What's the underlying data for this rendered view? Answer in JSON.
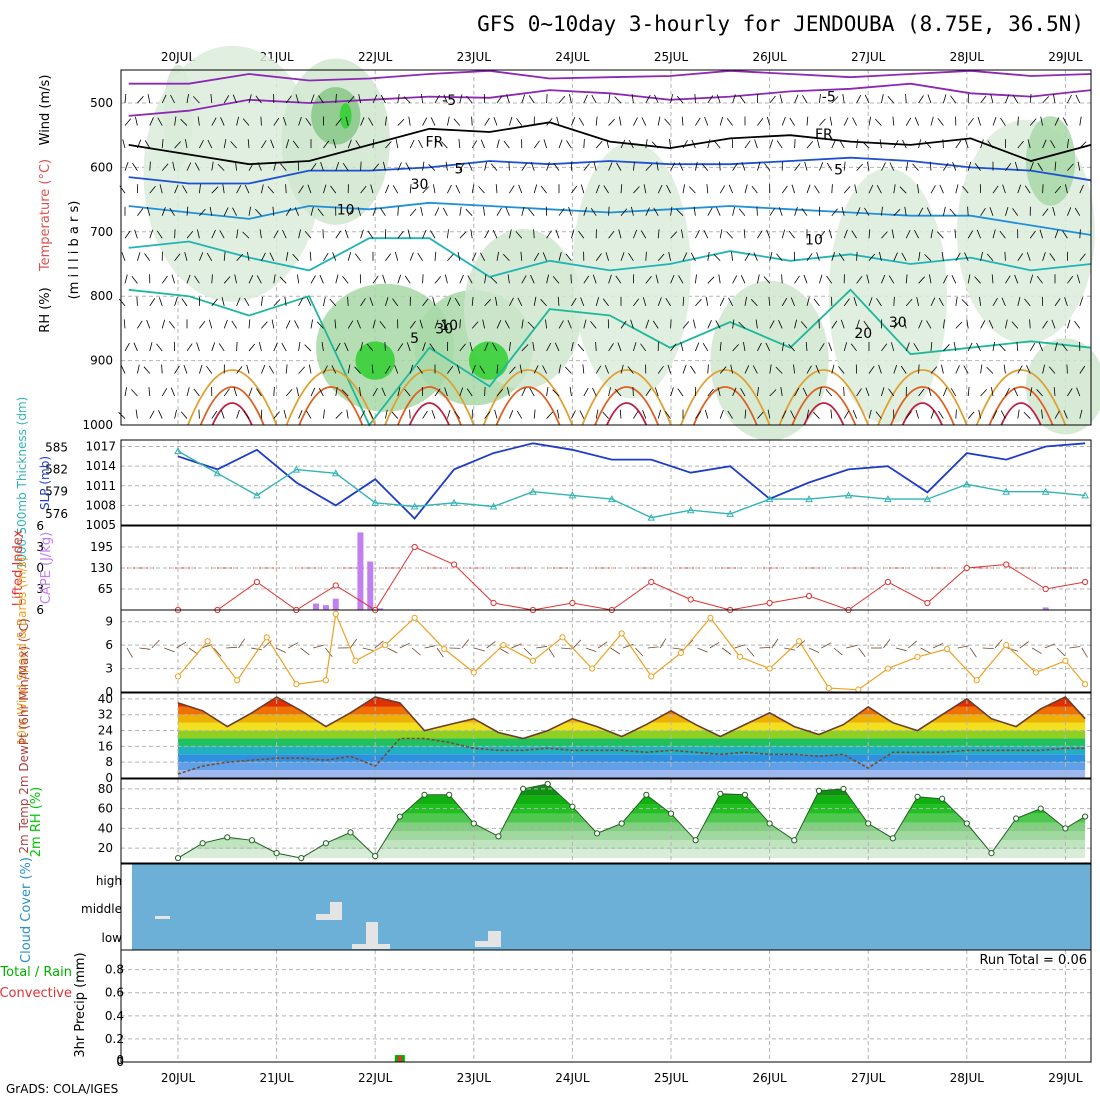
{
  "title": "GFS 0~10day 3-hourly for JENDOUBA (8.75E, 36.5N)",
  "credit": "GrADS: COLA/IGES",
  "date_labels": [
    "20JUL",
    "21JUL",
    "22JUL",
    "23JUL",
    "24JUL",
    "25JUL",
    "26JUL",
    "27JUL",
    "28JUL",
    "29JUL"
  ],
  "colors": {
    "grid": "#b4b4b4",
    "slp": "#1e3cc8",
    "thick": "#32b4b4",
    "li": "#e03232",
    "cape": "#c080f0",
    "wind": "#f0a020",
    "temp_line": "#6e3c28",
    "rh": "#00c800",
    "cloud_bg": "#6cb0d8",
    "rain": "#00b000",
    "conv": "#e03232"
  },
  "chart_data": [
    {
      "type": "contour",
      "panel": "upper-air",
      "ylabel_parts": [
        "RH (%)",
        "Temperature (°C)",
        "Wind (m/s)",
        "(m i l l i b a r s)"
      ],
      "y_ticks": [
        500,
        600,
        700,
        800,
        900,
        1000
      ],
      "temperature_labels": [
        "-5",
        "-5",
        "FR",
        "FR",
        "5",
        "5",
        "10",
        "10",
        "20",
        "30",
        "30",
        "30",
        "5",
        "10"
      ]
    },
    {
      "type": "line",
      "panel": "thickness-slp",
      "ylabel_left": "1000-500mb Thickness (dm)",
      "ylabel_right": "SLP (mb)",
      "thickness_ticks": [
        576,
        579,
        582,
        585
      ],
      "slp_ticks": [
        1005,
        1008,
        1011,
        1014,
        1017
      ],
      "x": [
        0,
        0.4,
        0.8,
        1.2,
        1.6,
        2.0,
        2.4,
        2.8,
        3.2,
        3.6,
        4.0,
        4.4,
        4.8,
        5.2,
        5.6,
        6.0,
        6.4,
        6.8,
        7.2,
        7.6,
        8.0,
        8.4,
        8.8,
        9.2
      ],
      "series": [
        {
          "name": "SLP (mb)",
          "values": [
            1015.5,
            1013.5,
            1016.5,
            1011.5,
            1008,
            1012,
            1006,
            1013.5,
            1016,
            1017.5,
            1016.5,
            1015,
            1015,
            1013,
            1014,
            1009,
            1011.5,
            1013.5,
            1014,
            1010,
            1016,
            1015,
            1017,
            1017.5
          ]
        },
        {
          "name": "1000-500mb Thickness (dm)",
          "values": [
            584.5,
            581.5,
            578.5,
            582,
            581.5,
            577.5,
            577,
            577.5,
            577,
            579,
            578.5,
            578,
            575.5,
            576.5,
            576,
            578,
            578,
            578.5,
            578,
            578,
            580,
            579,
            579,
            578.5
          ]
        }
      ]
    },
    {
      "type": "bar",
      "panel": "cape-li",
      "ylabel_left": "Lifted Index",
      "ylabel_right": "CAPE (J/kg)",
      "li_ticks": [
        -6,
        -3,
        0,
        3,
        6
      ],
      "cape_ticks": [
        65,
        130,
        195
      ],
      "li_values": [
        6,
        6,
        2,
        6,
        2.5,
        6,
        -3,
        -0.5,
        5,
        6,
        5,
        6,
        2,
        4.5,
        6,
        5,
        4,
        6,
        2,
        5,
        0,
        -0.5,
        3,
        2
      ],
      "cape_bars": [
        {
          "x": 1.4,
          "v": 20
        },
        {
          "x": 1.5,
          "v": 15
        },
        {
          "x": 1.6,
          "v": 35
        },
        {
          "x": 1.85,
          "v": 240
        },
        {
          "x": 1.95,
          "v": 150
        },
        {
          "x": 2.05,
          "v": 5
        },
        {
          "x": 3.2,
          "v": 2
        },
        {
          "x": 8.8,
          "v": 8
        }
      ]
    },
    {
      "type": "line",
      "panel": "wind",
      "ylabel": "10m Wind Speed & Barbs (m/s)",
      "y_ticks": [
        0,
        3,
        6,
        9
      ],
      "x": [
        0,
        0.3,
        0.6,
        0.9,
        1.2,
        1.5,
        1.6,
        1.8,
        2.1,
        2.4,
        2.7,
        3.0,
        3.3,
        3.6,
        3.9,
        4.2,
        4.5,
        4.8,
        5.1,
        5.4,
        5.7,
        6.0,
        6.3,
        6.6,
        6.9,
        7.2,
        7.5,
        7.8,
        8.1,
        8.4,
        8.7,
        9.0,
        9.2
      ],
      "values": [
        2,
        6.5,
        1.5,
        7,
        1,
        1.5,
        10,
        4,
        6,
        9.5,
        5.5,
        2.5,
        6,
        4,
        7,
        3,
        7.5,
        2,
        5,
        9.5,
        4.5,
        3,
        6.5,
        0.5,
        0.3,
        3,
        4.5,
        5.5,
        1.5,
        6,
        2.5,
        4,
        1
      ]
    },
    {
      "type": "area",
      "panel": "temperature",
      "ylabel": "2m Temp 2m DewPt (6hr Min/Max) (°C)",
      "y_ticks": [
        0,
        8,
        16,
        24,
        32,
        40
      ],
      "x": [
        0,
        0.25,
        0.5,
        0.75,
        1.0,
        1.25,
        1.5,
        1.75,
        2.0,
        2.25,
        2.5,
        2.75,
        3.0,
        3.25,
        3.5,
        3.75,
        4.0,
        4.25,
        4.5,
        4.75,
        5.0,
        5.25,
        5.5,
        5.75,
        6.0,
        6.25,
        6.5,
        6.75,
        7.0,
        7.25,
        7.5,
        7.75,
        8.0,
        8.25,
        8.5,
        8.75,
        9.0,
        9.2
      ],
      "series": [
        {
          "name": "2m Temp",
          "values": [
            38,
            34,
            26,
            33,
            41,
            34,
            26,
            33,
            41,
            38,
            24,
            27,
            30,
            23,
            20,
            24,
            30,
            26,
            21,
            27,
            34,
            27,
            21,
            27,
            33,
            26,
            22,
            27,
            36,
            28,
            24,
            32,
            40,
            30,
            26,
            35,
            41,
            30
          ]
        },
        {
          "name": "2m DewPt",
          "values": [
            2,
            6,
            8,
            9,
            10,
            10,
            9,
            11,
            6,
            20,
            20,
            18,
            15,
            14,
            14,
            15,
            14,
            14,
            14,
            13,
            14,
            13,
            12,
            13,
            12,
            12,
            11,
            12,
            5,
            13,
            13,
            13,
            14,
            14,
            14,
            14,
            15,
            15
          ]
        }
      ]
    },
    {
      "type": "area",
      "panel": "rh",
      "ylabel": "2m RH (%)",
      "y_ticks": [
        20,
        40,
        60,
        80
      ],
      "x": [
        0,
        0.25,
        0.5,
        0.75,
        1.0,
        1.25,
        1.5,
        1.75,
        2.0,
        2.25,
        2.5,
        2.75,
        3.0,
        3.25,
        3.5,
        3.75,
        4.0,
        4.25,
        4.5,
        4.75,
        5.0,
        5.25,
        5.5,
        5.75,
        6.0,
        6.25,
        6.5,
        6.75,
        7.0,
        7.25,
        7.5,
        7.75,
        8.0,
        8.25,
        8.5,
        8.75,
        9.0,
        9.2
      ],
      "values": [
        10,
        25,
        31,
        28,
        15,
        10,
        25,
        36,
        12,
        52,
        74,
        74,
        45,
        32,
        80,
        85,
        62,
        35,
        45,
        74,
        55,
        28,
        75,
        74,
        45,
        28,
        78,
        80,
        45,
        30,
        72,
        70,
        45,
        15,
        50,
        60,
        40,
        52
      ]
    },
    {
      "type": "bar",
      "panel": "cloud",
      "ylabel": "Cloud Cover (%)",
      "y_ticks": [
        "high",
        "middle",
        "low"
      ]
    },
    {
      "type": "bar",
      "panel": "precip",
      "ylabel_left": "Total / Rain Convective",
      "ylabel_right": "3hr Precip (mm)",
      "y_ticks": [
        0,
        0.2,
        0.4,
        0.6,
        0.8
      ],
      "run_total": "Run Total = 0.06",
      "bars": [
        {
          "x": 2.25,
          "total": 0.06,
          "conv": 0.05
        }
      ]
    }
  ]
}
